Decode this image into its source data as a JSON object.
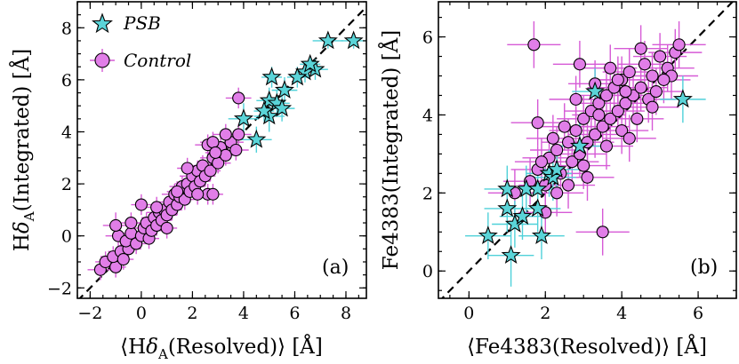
{
  "chart_data": [
    {
      "type": "scatter",
      "panel_label": "(a)",
      "xlabel": "⟨Hδ_A(Resolved)⟩ [Å]",
      "ylabel": "Hδ_A(Integrated) [Å]",
      "xlabel_parts": {
        "pre": "⟨H",
        "delta": "δ",
        "sub": "A",
        "post": "(Resolved)⟩ [Å]"
      },
      "ylabel_parts": {
        "pre": "H",
        "delta": "δ",
        "sub": "A",
        "post": "(Integrated) [Å]"
      },
      "xlim": [
        -2.5,
        8.8
      ],
      "ylim": [
        -2.4,
        9.0
      ],
      "xticks": [
        -2,
        0,
        2,
        4,
        6,
        8
      ],
      "yticks": [
        -2,
        0,
        2,
        4,
        6,
        8
      ],
      "xtick_labels": [
        "−2",
        "0",
        "2",
        "4",
        "6",
        "8"
      ],
      "ytick_labels": [
        "−2",
        "0",
        "2",
        "4",
        "6",
        "8"
      ],
      "legend": [
        {
          "name": "PSB",
          "marker": "star"
        },
        {
          "name": "Control",
          "marker": "circle"
        }
      ],
      "legend_position": "top-left",
      "one_to_one_line": true,
      "series": [
        {
          "name": "PSB",
          "color": "#5ad4d8",
          "points": [
            [
              8.3,
              7.5,
              0.5,
              0.3
            ],
            [
              7.3,
              7.5,
              0.6,
              0.3
            ],
            [
              6.8,
              6.4,
              0.5,
              0.4
            ],
            [
              6.4,
              6.3,
              0.4,
              0.4
            ],
            [
              6.6,
              6.6,
              0.4,
              0.3
            ],
            [
              6.1,
              6.1,
              0.4,
              0.4
            ],
            [
              5.6,
              5.6,
              0.5,
              0.5
            ],
            [
              5.1,
              6.1,
              0.4,
              0.4
            ],
            [
              5.0,
              5.2,
              0.5,
              0.5
            ],
            [
              5.3,
              5.1,
              0.5,
              0.5
            ],
            [
              5.5,
              4.9,
              0.5,
              0.5
            ],
            [
              5.0,
              4.6,
              0.6,
              0.6
            ],
            [
              4.8,
              4.8,
              0.4,
              0.4
            ],
            [
              4.0,
              4.5,
              0.6,
              0.6
            ],
            [
              4.5,
              3.7,
              0.6,
              0.5
            ]
          ]
        },
        {
          "name": "Control",
          "color": "#e17ee8",
          "points": [
            [
              -1.6,
              -1.3,
              0.5,
              0.4
            ],
            [
              -1.4,
              -1.0,
              0.4,
              0.4
            ],
            [
              -1.0,
              -1.2,
              0.4,
              0.4
            ],
            [
              -1.1,
              -0.8,
              0.5,
              0.4
            ],
            [
              -0.8,
              -0.6,
              0.5,
              0.4
            ],
            [
              -0.7,
              -0.9,
              0.4,
              0.4
            ],
            [
              -0.5,
              -0.5,
              0.5,
              0.4
            ],
            [
              -0.9,
              0.0,
              0.5,
              0.4
            ],
            [
              -1.0,
              0.4,
              0.5,
              0.5
            ],
            [
              -0.6,
              -0.2,
              0.4,
              0.4
            ],
            [
              -0.4,
              0.1,
              0.4,
              0.4
            ],
            [
              -0.2,
              -0.3,
              0.4,
              0.4
            ],
            [
              0.0,
              0.0,
              0.5,
              0.4
            ],
            [
              0.1,
              0.3,
              0.4,
              0.4
            ],
            [
              0.3,
              -0.1,
              0.4,
              0.4
            ],
            [
              0.2,
              0.5,
              0.5,
              0.4
            ],
            [
              0.4,
              0.2,
              0.4,
              0.4
            ],
            [
              0.5,
              0.7,
              0.5,
              0.4
            ],
            [
              0.6,
              0.4,
              0.4,
              0.4
            ],
            [
              0.7,
              0.9,
              0.5,
              0.4
            ],
            [
              0.8,
              0.6,
              0.4,
              0.4
            ],
            [
              0.9,
              1.0,
              0.5,
              0.4
            ],
            [
              1.0,
              0.8,
              0.4,
              0.4
            ],
            [
              1.1,
              1.3,
              0.5,
              0.4
            ],
            [
              1.2,
              1.0,
              0.4,
              0.4
            ],
            [
              1.3,
              1.6,
              0.5,
              0.4
            ],
            [
              1.4,
              1.2,
              0.4,
              0.4
            ],
            [
              1.5,
              1.5,
              0.5,
              0.4
            ],
            [
              1.6,
              1.9,
              0.5,
              0.4
            ],
            [
              1.7,
              1.4,
              0.4,
              0.4
            ],
            [
              1.8,
              2.0,
              0.5,
              0.4
            ],
            [
              1.9,
              1.7,
              0.4,
              0.4
            ],
            [
              2.0,
              2.3,
              0.5,
              0.4
            ],
            [
              2.1,
              1.9,
              0.4,
              0.4
            ],
            [
              2.2,
              2.5,
              0.5,
              0.4
            ],
            [
              2.3,
              2.1,
              0.4,
              0.4
            ],
            [
              2.4,
              2.7,
              0.5,
              0.4
            ],
            [
              2.5,
              2.3,
              0.4,
              0.4
            ],
            [
              2.6,
              1.6,
              0.5,
              0.4
            ],
            [
              2.7,
              2.5,
              0.4,
              0.4
            ],
            [
              2.8,
              3.0,
              0.5,
              0.4
            ],
            [
              3.0,
              2.8,
              0.5,
              0.4
            ],
            [
              3.1,
              3.4,
              0.5,
              0.4
            ],
            [
              3.3,
              3.1,
              0.5,
              0.4
            ],
            [
              3.5,
              3.6,
              0.5,
              0.4
            ],
            [
              3.7,
              3.3,
              0.5,
              0.4
            ],
            [
              3.8,
              3.9,
              0.5,
              0.4
            ],
            [
              2.6,
              3.5,
              0.5,
              0.4
            ],
            [
              2.8,
              3.6,
              0.5,
              0.4
            ],
            [
              2.9,
              3.2,
              0.4,
              0.4
            ],
            [
              3.3,
              3.9,
              0.5,
              0.4
            ],
            [
              3.8,
              5.3,
              0.5,
              0.4
            ],
            [
              0.0,
              1.2,
              0.4,
              0.4
            ],
            [
              -0.4,
              0.5,
              0.4,
              0.4
            ],
            [
              1.4,
              1.7,
              0.4,
              0.4
            ],
            [
              1.0,
              0.3,
              0.4,
              0.4
            ],
            [
              2.2,
              1.6,
              0.4,
              0.4
            ],
            [
              2.8,
              1.6,
              0.4,
              0.4
            ],
            [
              0.6,
              1.1,
              0.4,
              0.4
            ],
            [
              1.8,
              2.6,
              0.4,
              0.4
            ]
          ]
        }
      ]
    },
    {
      "type": "scatter",
      "panel_label": "(b)",
      "xlabel": "⟨Fe4383(Resolved)⟩ [Å]",
      "ylabel": "Fe4383(Integrated) [Å]",
      "xlim": [
        -0.8,
        7.0
      ],
      "ylim": [
        -0.7,
        6.9
      ],
      "xticks": [
        0,
        2,
        4,
        6
      ],
      "yticks": [
        0,
        2,
        4,
        6
      ],
      "xtick_labels": [
        "0",
        "2",
        "4",
        "6"
      ],
      "ytick_labels": [
        "0",
        "2",
        "4",
        "6"
      ],
      "one_to_one_line": true,
      "series": [
        {
          "name": "PSB",
          "color": "#5ad4d8",
          "points": [
            [
              0.5,
              0.9,
              0.6,
              0.6
            ],
            [
              1.1,
              0.4,
              0.6,
              0.8
            ],
            [
              1.0,
              1.6,
              0.6,
              0.6
            ],
            [
              1.2,
              1.2,
              0.6,
              0.6
            ],
            [
              1.4,
              1.4,
              0.6,
              0.6
            ],
            [
              1.0,
              2.1,
              0.6,
              0.6
            ],
            [
              1.5,
              2.1,
              0.6,
              0.6
            ],
            [
              1.8,
              1.6,
              0.6,
              0.6
            ],
            [
              1.9,
              0.9,
              0.6,
              0.6
            ],
            [
              1.8,
              2.1,
              0.6,
              0.6
            ],
            [
              2.1,
              2.5,
              0.6,
              0.6
            ],
            [
              2.2,
              2.4,
              0.6,
              0.6
            ],
            [
              2.3,
              2.6,
              0.6,
              0.6
            ],
            [
              2.9,
              3.2,
              0.6,
              0.6
            ],
            [
              3.3,
              4.6,
              0.6,
              0.6
            ],
            [
              5.6,
              4.4,
              0.6,
              0.6
            ]
          ]
        },
        {
          "name": "Control",
          "color": "#e17ee8",
          "points": [
            [
              1.2,
              2.0,
              0.7,
              0.6
            ],
            [
              1.6,
              2.3,
              0.7,
              0.6
            ],
            [
              1.8,
              2.6,
              0.7,
              0.6
            ],
            [
              2.0,
              2.2,
              0.7,
              0.6
            ],
            [
              2.1,
              2.9,
              0.7,
              0.6
            ],
            [
              2.3,
              3.1,
              0.7,
              0.6
            ],
            [
              2.4,
              2.5,
              0.7,
              0.6
            ],
            [
              2.6,
              3.3,
              0.7,
              0.6
            ],
            [
              2.7,
              2.8,
              0.7,
              0.6
            ],
            [
              2.8,
              3.6,
              0.7,
              0.6
            ],
            [
              2.9,
              3.0,
              0.7,
              0.6
            ],
            [
              3.0,
              3.9,
              0.7,
              0.6
            ],
            [
              3.1,
              3.3,
              0.7,
              0.6
            ],
            [
              3.2,
              4.1,
              0.7,
              0.6
            ],
            [
              3.3,
              3.5,
              0.7,
              0.6
            ],
            [
              3.4,
              4.3,
              0.7,
              0.6
            ],
            [
              3.5,
              3.7,
              0.7,
              0.6
            ],
            [
              3.6,
              4.5,
              0.7,
              0.6
            ],
            [
              3.7,
              3.9,
              0.7,
              0.6
            ],
            [
              3.8,
              4.7,
              0.7,
              0.6
            ],
            [
              3.9,
              4.1,
              0.7,
              0.6
            ],
            [
              4.0,
              4.9,
              0.7,
              0.6
            ],
            [
              4.1,
              4.3,
              0.7,
              0.6
            ],
            [
              4.2,
              5.1,
              0.7,
              0.6
            ],
            [
              4.3,
              4.5,
              0.7,
              0.6
            ],
            [
              4.4,
              3.9,
              0.7,
              0.6
            ],
            [
              4.5,
              4.7,
              0.7,
              0.6
            ],
            [
              4.6,
              5.3,
              0.7,
              0.6
            ],
            [
              4.7,
              4.4,
              0.7,
              0.6
            ],
            [
              4.8,
              5.0,
              0.7,
              0.6
            ],
            [
              4.9,
              4.6,
              0.7,
              0.6
            ],
            [
              5.0,
              5.5,
              0.7,
              0.6
            ],
            [
              5.2,
              5.2,
              0.7,
              0.6
            ],
            [
              5.4,
              5.6,
              0.7,
              0.6
            ],
            [
              5.5,
              5.8,
              0.7,
              0.6
            ],
            [
              5.3,
              5.0,
              0.7,
              0.6
            ],
            [
              2.9,
              5.3,
              0.7,
              0.6
            ],
            [
              1.7,
              5.8,
              0.7,
              0.6
            ],
            [
              1.8,
              3.8,
              0.7,
              0.6
            ],
            [
              3.5,
              1.0,
              0.7,
              0.6
            ],
            [
              2.5,
              3.7,
              0.7,
              0.6
            ],
            [
              3.0,
              2.7,
              0.7,
              0.6
            ],
            [
              3.6,
              3.2,
              0.7,
              0.6
            ],
            [
              4.0,
              3.6,
              0.7,
              0.6
            ],
            [
              2.2,
              3.4,
              0.7,
              0.6
            ],
            [
              2.6,
              2.2,
              0.7,
              0.6
            ],
            [
              1.9,
              2.8,
              0.7,
              0.6
            ],
            [
              3.3,
              4.8,
              0.7,
              0.6
            ],
            [
              4.5,
              5.7,
              0.7,
              0.6
            ],
            [
              3.9,
              4.9,
              0.7,
              0.6
            ],
            [
              4.8,
              4.2,
              0.7,
              0.6
            ],
            [
              2.3,
              2.0,
              0.7,
              0.6
            ],
            [
              3.1,
              2.4,
              0.7,
              0.6
            ],
            [
              4.2,
              3.4,
              0.7,
              0.6
            ],
            [
              2.0,
              1.5,
              0.7,
              0.6
            ],
            [
              3.4,
              4.0,
              0.7,
              0.6
            ],
            [
              4.1,
              4.6,
              0.7,
              0.6
            ],
            [
              2.8,
              4.4,
              0.7,
              0.6
            ],
            [
              3.7,
              5.2,
              0.7,
              0.6
            ],
            [
              5.1,
              4.9,
              0.7,
              0.6
            ]
          ]
        }
      ]
    }
  ]
}
